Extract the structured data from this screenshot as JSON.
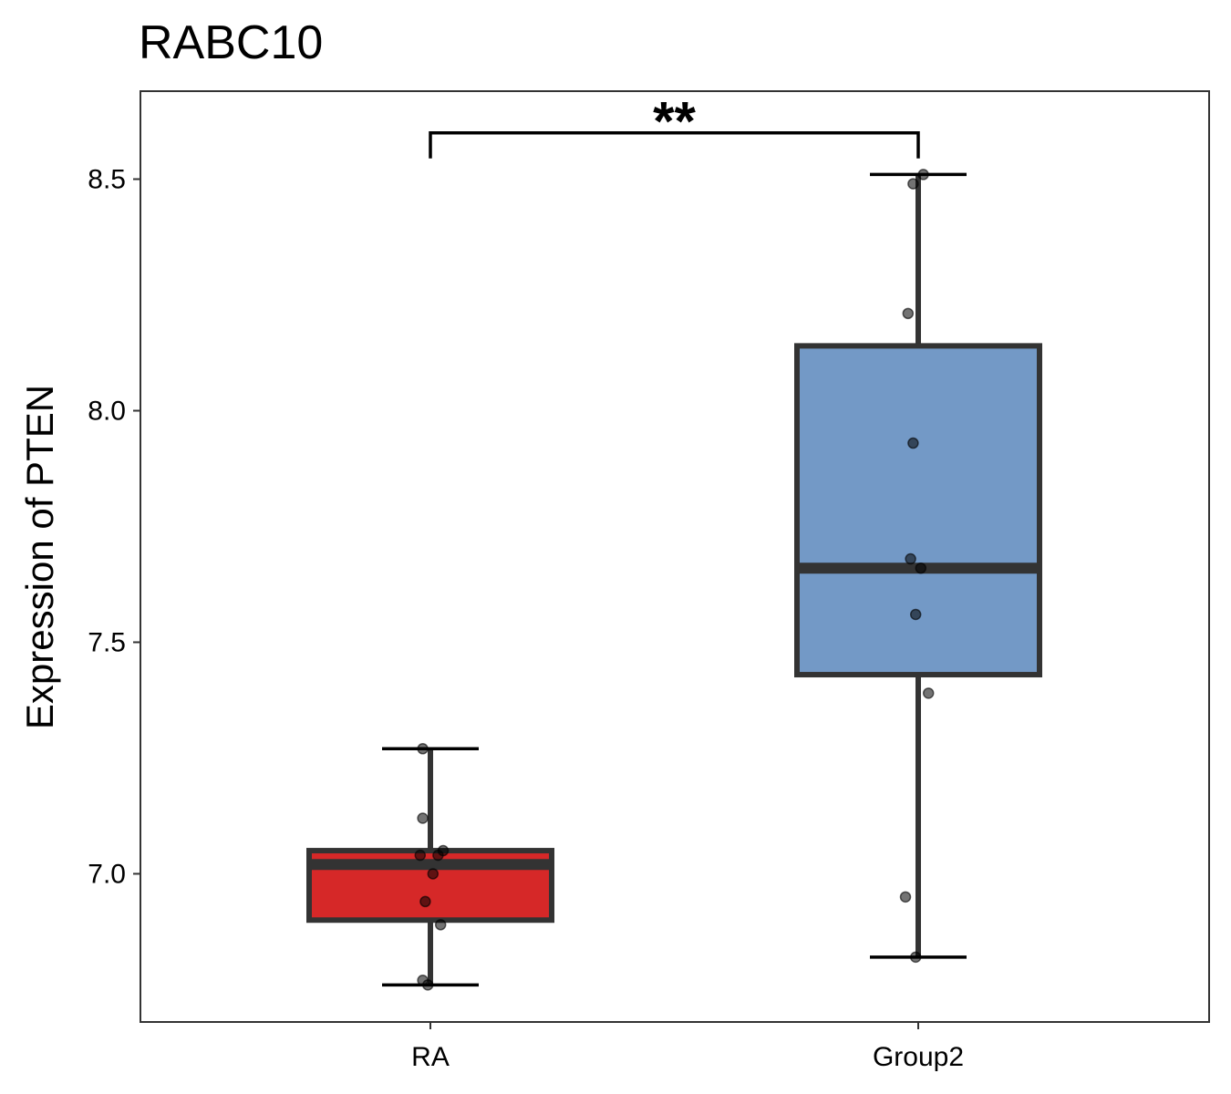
{
  "chart_data": {
    "type": "box",
    "title": "RABC10",
    "xlabel": "",
    "ylabel": "Expression of PTEN",
    "ylim": [
      6.68,
      8.69
    ],
    "yticks": [
      7.0,
      7.5,
      8.0,
      8.5
    ],
    "ytick_labels": [
      "7.0",
      "7.5",
      "8.0",
      "8.5"
    ],
    "grid": false,
    "categories": [
      "RA",
      "Group2"
    ],
    "groups": [
      {
        "name": "RA",
        "color": "#D62828",
        "whisker_low": 6.76,
        "q1": 6.9,
        "median": 7.02,
        "q3": 7.05,
        "whisker_high": 7.27,
        "points": [
          {
            "jitter": -0.03,
            "y": 7.27
          },
          {
            "jitter": -0.03,
            "y": 7.12
          },
          {
            "jitter": -0.04,
            "y": 7.04
          },
          {
            "jitter": 0.03,
            "y": 7.04
          },
          {
            "jitter": 0.05,
            "y": 7.05
          },
          {
            "jitter": 0.01,
            "y": 7.0
          },
          {
            "jitter": -0.02,
            "y": 6.94
          },
          {
            "jitter": 0.04,
            "y": 6.89
          },
          {
            "jitter": -0.03,
            "y": 6.77
          },
          {
            "jitter": -0.01,
            "y": 6.76
          }
        ]
      },
      {
        "name": "Group2",
        "color": "#7399C6",
        "whisker_low": 6.82,
        "q1": 7.43,
        "median": 7.66,
        "q3": 8.14,
        "whisker_high": 8.51,
        "points": [
          {
            "jitter": 0.02,
            "y": 8.51
          },
          {
            "jitter": -0.02,
            "y": 8.49
          },
          {
            "jitter": -0.04,
            "y": 8.21
          },
          {
            "jitter": -0.02,
            "y": 7.93
          },
          {
            "jitter": -0.03,
            "y": 7.68
          },
          {
            "jitter": 0.01,
            "y": 7.66
          },
          {
            "jitter": -0.01,
            "y": 7.56
          },
          {
            "jitter": 0.04,
            "y": 7.39
          },
          {
            "jitter": -0.05,
            "y": 6.95
          },
          {
            "jitter": -0.01,
            "y": 6.82
          }
        ]
      }
    ],
    "significance": {
      "label": "**",
      "from": "RA",
      "to": "Group2",
      "y": 8.6
    }
  }
}
